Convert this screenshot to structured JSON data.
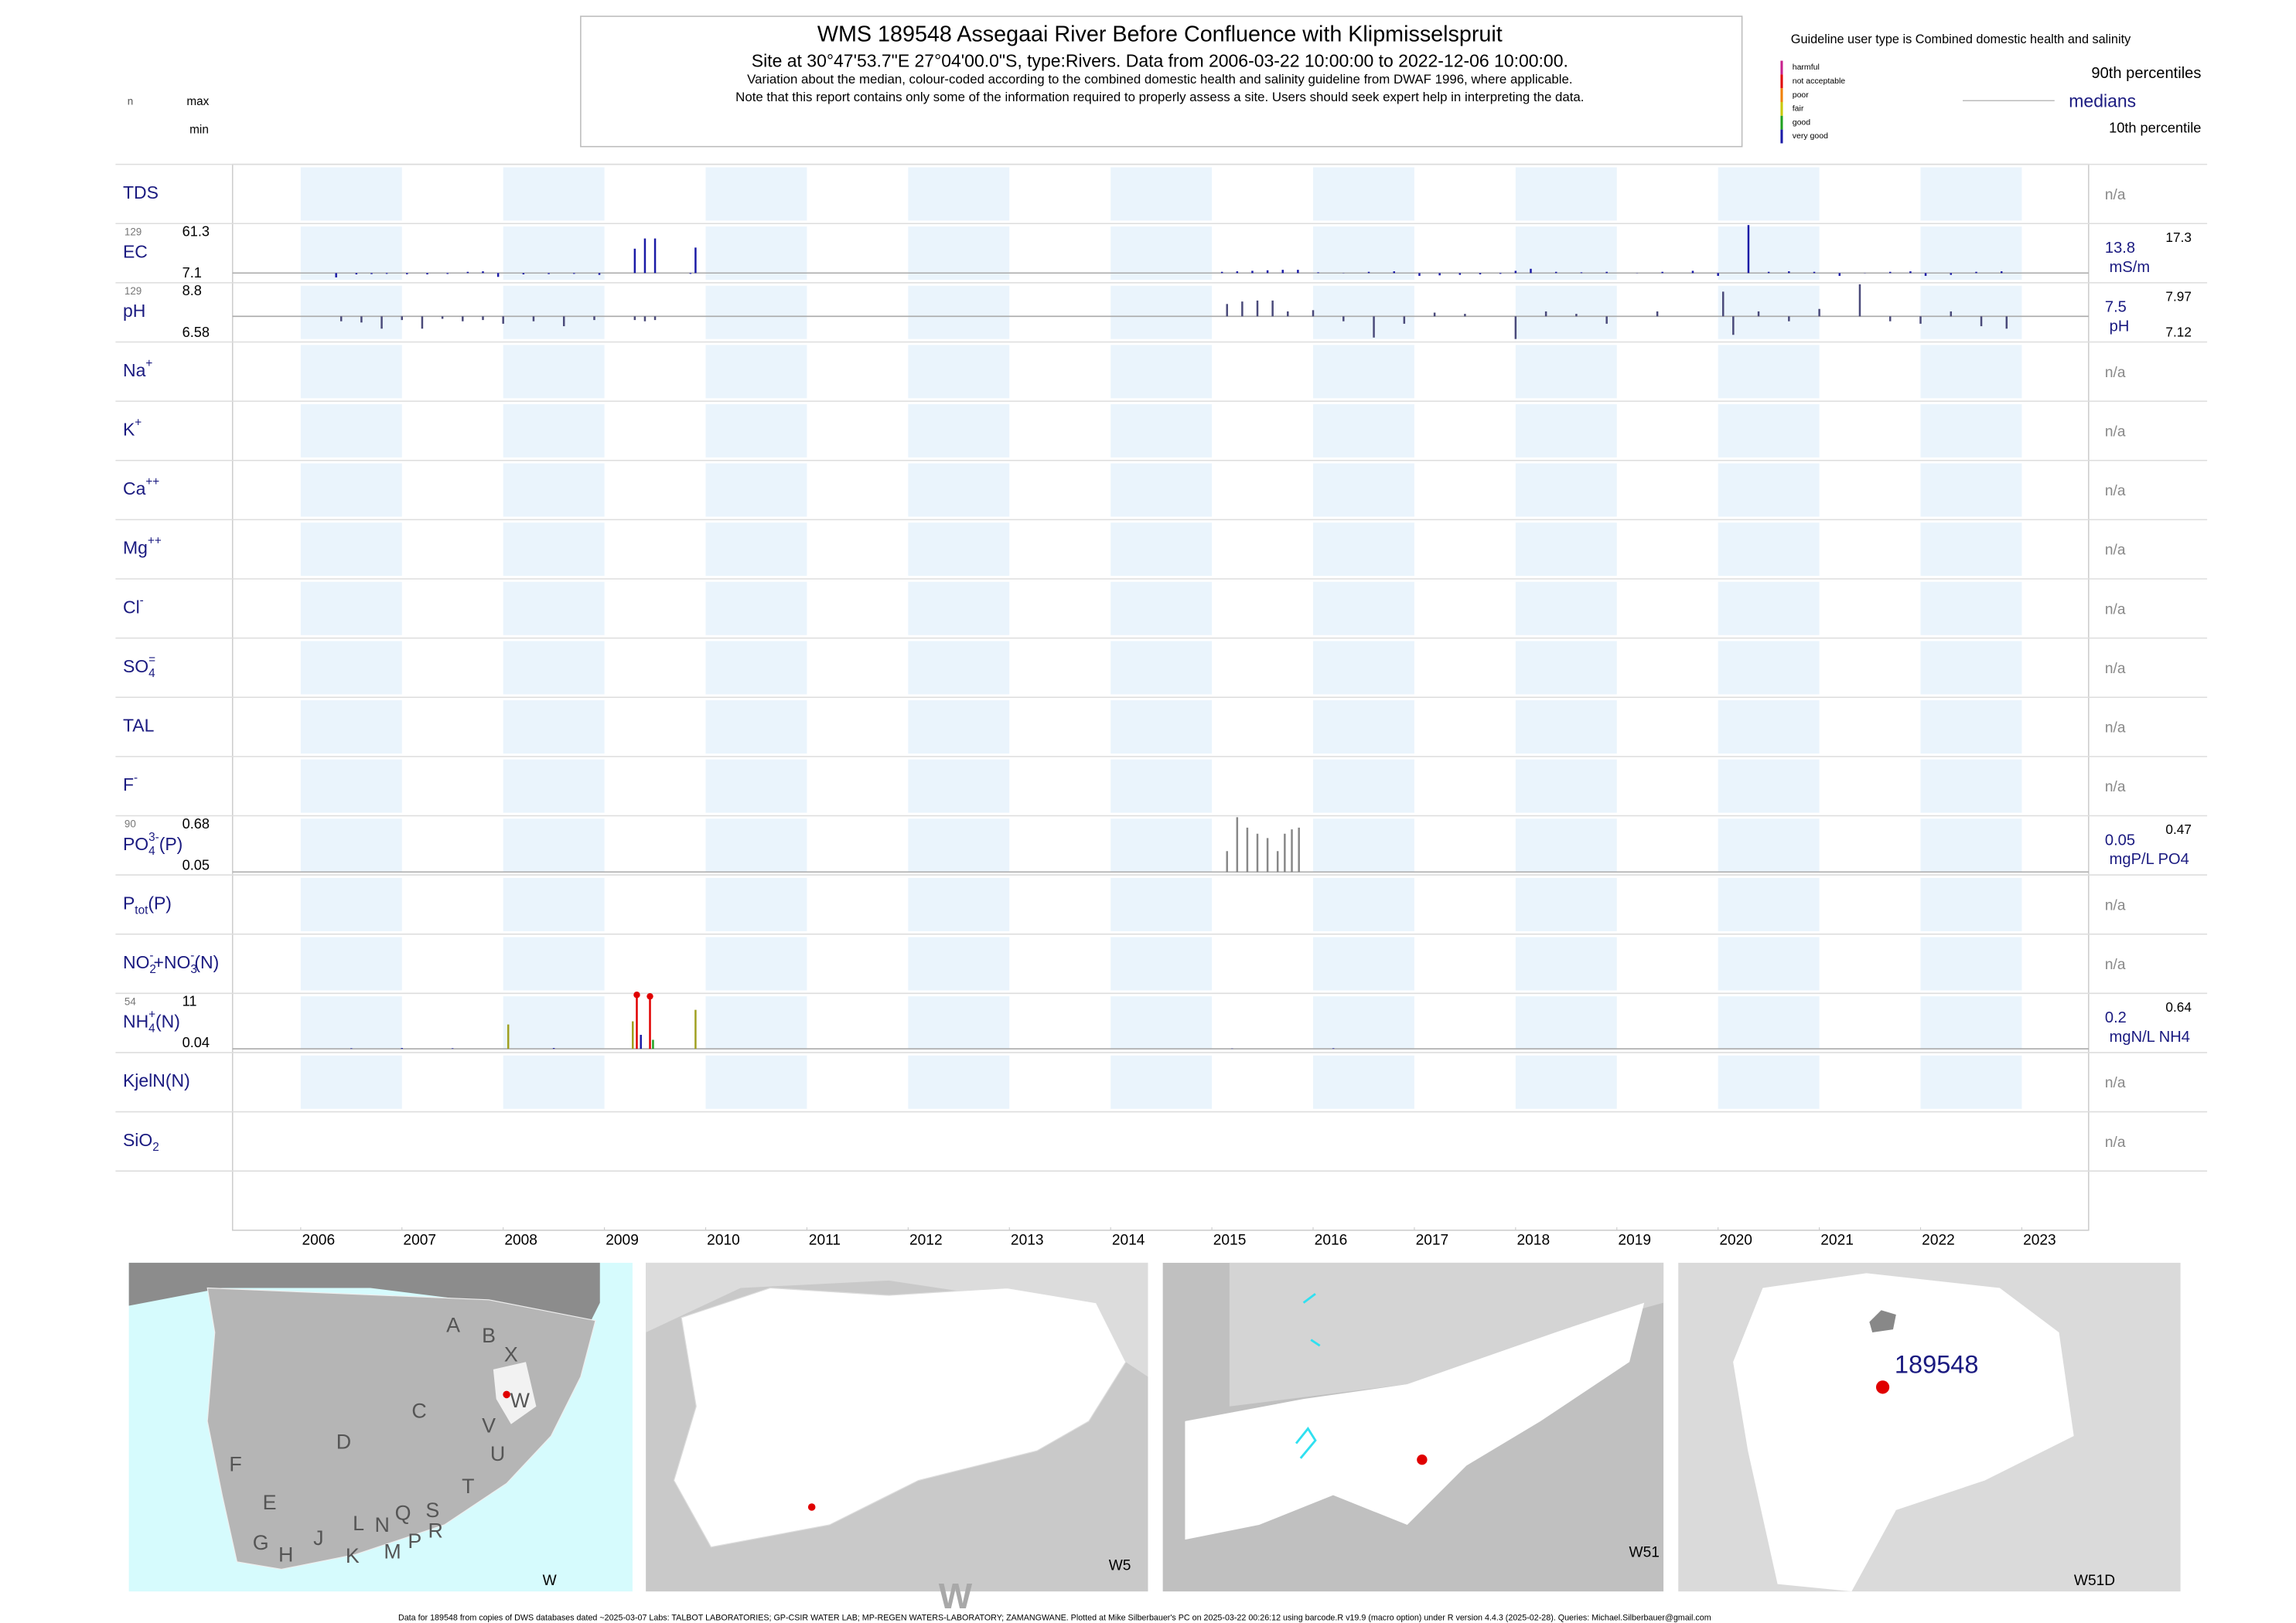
{
  "chart_data": {
    "type": "barcode",
    "title": "WMS 189548  Assegaai River Before Confluence with Klipmisselspruit",
    "subtitle": "Site at 30°47'53.7\"E 27°04'00.0\"S, type:Rivers.  Data from 2006-03-22 10:00:00 to 2022-12-06 10:00:00.",
    "note1": "Variation about the median,  colour-coded according to the combined domestic health and salinity guideline from DWAF 1996, where applicable.",
    "note2": "Note that this report contains only some of the information required to properly assess a site. Users should seek expert help in interpreting the data.",
    "head_n": "n",
    "head_max": "max",
    "head_min": "min",
    "legend": {
      "title": "Guideline user type is Combined domestic health and salinity",
      "classes": [
        {
          "name": "harmful",
          "color": "#c8208c"
        },
        {
          "name": "not acceptable",
          "color": "#e00000"
        },
        {
          "name": "poor",
          "color": "#f08000"
        },
        {
          "name": "fair",
          "color": "#c8c800"
        },
        {
          "name": "good",
          "color": "#20a020"
        },
        {
          "name": "very good",
          "color": "#1a1aa6"
        }
      ],
      "p90": "90th percentiles",
      "median": "medians",
      "p10": "10th percentile"
    },
    "xlim": [
      2005.327,
      2023.66
    ],
    "xticks": [
      2006,
      2007,
      2008,
      2009,
      2010,
      2011,
      2012,
      2013,
      2014,
      2015,
      2016,
      2017,
      2018,
      2019,
      2020,
      2021,
      2022,
      2023
    ],
    "rows": [
      {
        "label": [
          {
            "t": "TDS"
          }
        ],
        "na": "n/a"
      },
      {
        "label": [
          {
            "t": "EC"
          }
        ],
        "n": 129,
        "max": 61.3,
        "min": 7.1,
        "median": 13.8,
        "unit": "mS/m",
        "p90": 17.3,
        "color": "#1a1aa6",
        "x": [
          2006.35,
          2006.55,
          2006.7,
          2006.85,
          2007.05,
          2007.25,
          2007.45,
          2007.65,
          2007.8,
          2007.95,
          2008.2,
          2008.45,
          2008.7,
          2008.95,
          2009.3,
          2009.4,
          2009.5,
          2009.85,
          2009.9,
          2015.1,
          2015.25,
          2015.4,
          2015.55,
          2015.7,
          2015.85,
          2016.05,
          2016.3,
          2016.55,
          2016.8,
          2017.05,
          2017.25,
          2017.45,
          2017.65,
          2017.85,
          2018.0,
          2018.15,
          2018.4,
          2018.65,
          2018.9,
          2019.2,
          2019.45,
          2019.75,
          2020.0,
          2020.3,
          2020.5,
          2020.7,
          2020.95,
          2021.2,
          2021.45,
          2021.7,
          2021.9,
          2022.05,
          2022.3,
          2022.55,
          2022.8
        ],
        "values": [
          9.5,
          12.5,
          12.8,
          13,
          12.6,
          12.5,
          12.9,
          15,
          15.5,
          10,
          12.5,
          12.8,
          13,
          12,
          37.9,
          48,
          48,
          13,
          39,
          15,
          15.5,
          16,
          16.5,
          17,
          17,
          14.5,
          14,
          15,
          15.5,
          11,
          11.5,
          12,
          12.5,
          13,
          16,
          18,
          15,
          14.5,
          15,
          14,
          15,
          16,
          11,
          61.3,
          15,
          15.5,
          15,
          11,
          14,
          15,
          15.5,
          11,
          12,
          15,
          15.5
        ]
      },
      {
        "label": [
          {
            "t": "pH"
          }
        ],
        "n": 129,
        "max": 8.8,
        "min": 6.58,
        "median": 7.5,
        "unit": "pH",
        "p90": 7.97,
        "p10": 7.12,
        "color": "#4a4a7a",
        "x": [
          2006.4,
          2006.6,
          2006.8,
          2007.0,
          2007.2,
          2007.4,
          2007.6,
          2007.8,
          2008.0,
          2008.3,
          2008.6,
          2008.9,
          2009.3,
          2009.4,
          2009.5,
          2015.15,
          2015.3,
          2015.45,
          2015.6,
          2015.75,
          2016.0,
          2016.3,
          2016.6,
          2016.9,
          2017.2,
          2017.5,
          2017.8,
          2018.0,
          2018.3,
          2018.6,
          2018.9,
          2019.4,
          2020.05,
          2020.15,
          2020.4,
          2020.7,
          2021.0,
          2021.4,
          2021.7,
          2022.0,
          2022.3,
          2022.6,
          2022.85
        ],
        "values": [
          7.3,
          7.25,
          7.0,
          7.35,
          7.0,
          7.4,
          7.3,
          7.35,
          7.2,
          7.3,
          7.1,
          7.35,
          7.35,
          7.3,
          7.35,
          8.0,
          8.1,
          8.14,
          8.14,
          7.7,
          7.75,
          7.3,
          6.64,
          7.2,
          7.65,
          7.6,
          7.5,
          6.58,
          7.7,
          7.6,
          7.2,
          7.7,
          8.5,
          6.75,
          7.7,
          7.3,
          7.8,
          8.8,
          7.3,
          7.2,
          7.7,
          7.1,
          7.0
        ]
      },
      {
        "label": [
          {
            "t": "Na"
          },
          {
            "t": "+",
            "s": "sup"
          }
        ],
        "na": "n/a"
      },
      {
        "label": [
          {
            "t": "K"
          },
          {
            "t": "+",
            "s": "sup"
          }
        ],
        "na": "n/a"
      },
      {
        "label": [
          {
            "t": "Ca"
          },
          {
            "t": "++",
            "s": "sup"
          }
        ],
        "na": "n/a"
      },
      {
        "label": [
          {
            "t": "Mg"
          },
          {
            "t": "++",
            "s": "sup"
          }
        ],
        "na": "n/a"
      },
      {
        "label": [
          {
            "t": "Cl"
          },
          {
            "t": "-",
            "s": "sup"
          }
        ],
        "na": "n/a"
      },
      {
        "label": [
          {
            "t": "SO"
          },
          {
            "t": "4",
            "s": "sub"
          },
          {
            "t": "=",
            "s": "sup"
          }
        ],
        "na": "n/a"
      },
      {
        "label": [
          {
            "t": "TAL"
          }
        ],
        "na": "n/a"
      },
      {
        "label": [
          {
            "t": "F"
          },
          {
            "t": "-",
            "s": "sup"
          }
        ],
        "na": "n/a"
      },
      {
        "label": [
          {
            "t": "PO"
          },
          {
            "t": "4",
            "s": "sub"
          },
          {
            "t": "3-",
            "s": "sup"
          },
          {
            "t": "(P)"
          }
        ],
        "n": 90,
        "max": 0.68,
        "min": 0.05,
        "median": 0.05,
        "unit": "mgP/L PO4",
        "p90": 0.47,
        "color": "#888888",
        "x": [
          2015.15,
          2015.25,
          2015.35,
          2015.45,
          2015.55,
          2015.65,
          2015.72,
          2015.79,
          2015.86
        ],
        "values": [
          0.29,
          0.68,
          0.56,
          0.49,
          0.44,
          0.29,
          0.49,
          0.54,
          0.56
        ]
      },
      {
        "label": [
          {
            "t": "P"
          },
          {
            "t": "tot",
            "s": "sub"
          },
          {
            "t": "(P)"
          }
        ],
        "na": "n/a"
      },
      {
        "label": [
          {
            "t": "NO"
          },
          {
            "t": "2",
            "s": "sub"
          },
          {
            "t": "-",
            "s": "sup"
          },
          {
            "t": "+NO"
          },
          {
            "t": "3",
            "s": "sub"
          },
          {
            "t": "-",
            "s": "sup"
          },
          {
            "t": "(N)"
          }
        ],
        "na": "n/a"
      },
      {
        "label": [
          {
            "t": "NH"
          },
          {
            "t": "4",
            "s": "sub"
          },
          {
            "t": "+",
            "s": "sup"
          },
          {
            "t": "(N)"
          }
        ],
        "n": 54,
        "max": 11,
        "min": 0.04,
        "median": 0.2,
        "unit": "mgN/L NH4",
        "p90": 0.64,
        "color": "#1a1aa6",
        "x": [
          2006.5,
          2007.0,
          2007.5,
          2008.05,
          2008.5,
          2009.28,
          2009.32,
          2009.36,
          2009.45,
          2009.48,
          2009.9,
          2015.2,
          2016.2
        ],
        "values": [
          0.3,
          0.35,
          0.3,
          5.07,
          0.35,
          5.7,
          11,
          3,
          10.7,
          2,
          8,
          0.25,
          0.3
        ],
        "colors": [
          "#1a1aa6",
          "#1a1aa6",
          "#1a1aa6",
          "#a0a020",
          "#1a1aa6",
          "#a0a020",
          "#e00000",
          "#1a1aa6",
          "#e00000",
          "#20a020",
          "#a0a020",
          "#1a1aa6",
          "#1a1aa6"
        ]
      },
      {
        "label": [
          {
            "t": "KjelN(N)"
          }
        ],
        "na": "n/a"
      },
      {
        "label": [
          {
            "t": "SiO"
          },
          {
            "t": "2",
            "s": "sub"
          }
        ],
        "na": "n/a"
      }
    ],
    "maps": [
      {
        "label": "W",
        "regions": [
          "A",
          "B",
          "X",
          "W",
          "C",
          "D",
          "V",
          "U",
          "F",
          "E",
          "T",
          "G",
          "H",
          "J",
          "L",
          "N",
          "Q",
          "S",
          "K",
          "M",
          "P",
          "R"
        ]
      },
      {
        "label": "W5",
        "watermark": "W"
      },
      {
        "label": "W51"
      },
      {
        "label": "W51D",
        "site_label": "189548"
      }
    ],
    "footer": "Data for 189548 from copies of DWS databases dated ~2025-03-07 Labs: TALBOT LABORATORIES; GP-CSIR WATER LAB; MP-REGEN WATERS-LABORATORY; ZAMANGWANE. Plotted at Mike Silberbauer's PC on 2025-03-22 00:26:12 using barcode.R v19.9 (macro option) under R version 4.4.3 (2025-02-28). Queries: Michael.Silberbauer@gmail.com"
  }
}
